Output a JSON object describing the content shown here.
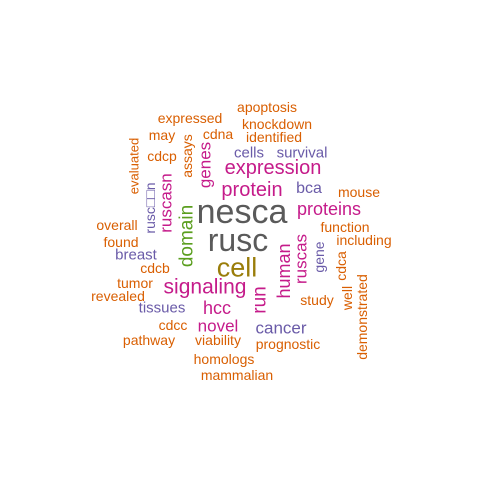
{
  "colors": {
    "orange": "#d95f02",
    "magenta": "#c51b8a",
    "purple": "#6a5ba8",
    "gray": "#5a5a5a",
    "olive": "#9a7d0a",
    "green": "#5a9e1e",
    "background": "#ffffff"
  },
  "words": [
    {
      "text": "nesca",
      "color": "#5a5a5a",
      "orientation": "horizontal"
    },
    {
      "text": "rusc",
      "color": "#5a5a5a",
      "orientation": "horizontal"
    },
    {
      "text": "cell",
      "color": "#9a7d0a",
      "orientation": "horizontal"
    },
    {
      "text": "expression",
      "color": "#c51b8a",
      "orientation": "horizontal"
    },
    {
      "text": "signaling",
      "color": "#c51b8a",
      "orientation": "horizontal"
    },
    {
      "text": "protein",
      "color": "#c51b8a",
      "orientation": "horizontal"
    },
    {
      "text": "proteins",
      "color": "#c51b8a",
      "orientation": "horizontal"
    },
    {
      "text": "novel",
      "color": "#c51b8a",
      "orientation": "horizontal"
    },
    {
      "text": "hcc",
      "color": "#c51b8a",
      "orientation": "horizontal"
    },
    {
      "text": "domain",
      "color": "#5a9e1e",
      "orientation": "vertical"
    },
    {
      "text": "ruscasn",
      "color": "#c51b8a",
      "orientation": "vertical"
    },
    {
      "text": "genes",
      "color": "#c51b8a",
      "orientation": "vertical"
    },
    {
      "text": "human",
      "color": "#c51b8a",
      "orientation": "vertical"
    },
    {
      "text": "run",
      "color": "#c51b8a",
      "orientation": "vertical"
    },
    {
      "text": "ruscas",
      "color": "#c51b8a",
      "orientation": "vertical"
    },
    {
      "text": "cancer",
      "color": "#6a5ba8",
      "orientation": "horizontal"
    },
    {
      "text": "bca",
      "color": "#6a5ba8",
      "orientation": "horizontal"
    },
    {
      "text": "cells",
      "color": "#6a5ba8",
      "orientation": "horizontal"
    },
    {
      "text": "survival",
      "color": "#6a5ba8",
      "orientation": "horizontal"
    },
    {
      "text": "breast",
      "color": "#6a5ba8",
      "orientation": "horizontal"
    },
    {
      "text": "tissues",
      "color": "#6a5ba8",
      "orientation": "horizontal"
    },
    {
      "text": "gene",
      "color": "#6a5ba8",
      "orientation": "vertical"
    },
    {
      "text": "rusc□□n",
      "color": "#6a5ba8",
      "orientation": "vertical"
    },
    {
      "text": "apoptosis",
      "color": "#d95f02",
      "orientation": "horizontal"
    },
    {
      "text": "expressed",
      "color": "#d95f02",
      "orientation": "horizontal"
    },
    {
      "text": "knockdown",
      "color": "#d95f02",
      "orientation": "horizontal"
    },
    {
      "text": "may",
      "color": "#d95f02",
      "orientation": "horizontal"
    },
    {
      "text": "cdna",
      "color": "#d95f02",
      "orientation": "horizontal"
    },
    {
      "text": "identified",
      "color": "#d95f02",
      "orientation": "horizontal"
    },
    {
      "text": "cdcp",
      "color": "#d95f02",
      "orientation": "horizontal"
    },
    {
      "text": "assays",
      "color": "#d95f02",
      "orientation": "vertical"
    },
    {
      "text": "evaluated",
      "color": "#d95f02",
      "orientation": "vertical"
    },
    {
      "text": "mouse",
      "color": "#d95f02",
      "orientation": "horizontal"
    },
    {
      "text": "function",
      "color": "#d95f02",
      "orientation": "horizontal"
    },
    {
      "text": "including",
      "color": "#d95f02",
      "orientation": "horizontal"
    },
    {
      "text": "overall",
      "color": "#d95f02",
      "orientation": "horizontal"
    },
    {
      "text": "found",
      "color": "#d95f02",
      "orientation": "horizontal"
    },
    {
      "text": "cdcb",
      "color": "#d95f02",
      "orientation": "horizontal"
    },
    {
      "text": "tumor",
      "color": "#d95f02",
      "orientation": "horizontal"
    },
    {
      "text": "revealed",
      "color": "#d95f02",
      "orientation": "horizontal"
    },
    {
      "text": "cdcc",
      "color": "#d95f02",
      "orientation": "horizontal"
    },
    {
      "text": "pathway",
      "color": "#d95f02",
      "orientation": "horizontal"
    },
    {
      "text": "viability",
      "color": "#d95f02",
      "orientation": "horizontal"
    },
    {
      "text": "prognostic",
      "color": "#d95f02",
      "orientation": "horizontal"
    },
    {
      "text": "homologs",
      "color": "#d95f02",
      "orientation": "horizontal"
    },
    {
      "text": "mammalian",
      "color": "#d95f02",
      "orientation": "horizontal"
    },
    {
      "text": "study",
      "color": "#d95f02",
      "orientation": "horizontal"
    },
    {
      "text": "cdca",
      "color": "#d95f02",
      "orientation": "vertical"
    },
    {
      "text": "well",
      "color": "#d95f02",
      "orientation": "vertical"
    },
    {
      "text": "demonstrated",
      "color": "#d95f02",
      "orientation": "vertical"
    }
  ]
}
